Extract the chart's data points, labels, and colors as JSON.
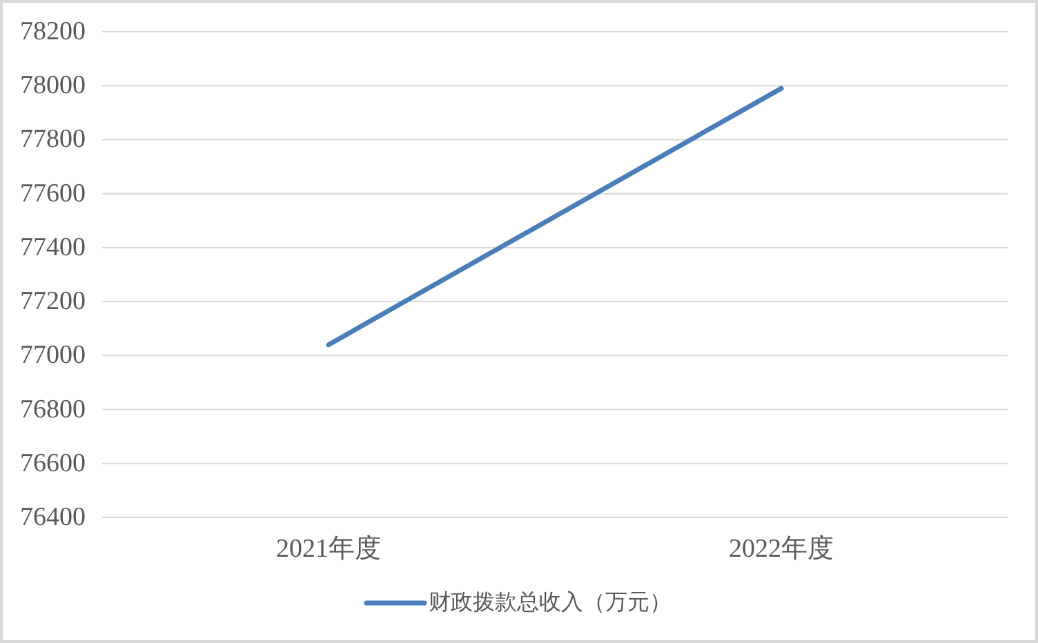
{
  "chart_data": {
    "type": "line",
    "categories": [
      "2021年度",
      "2022年度"
    ],
    "series": [
      {
        "name": "财政拨款总收入（万元）",
        "color": "#4a7ebb",
        "values": [
          77040,
          77990
        ]
      }
    ],
    "ylim": [
      76400,
      78200
    ],
    "yticks": [
      76400,
      76600,
      76800,
      77000,
      77200,
      77400,
      77600,
      77800,
      78000,
      78200
    ],
    "grid": "y",
    "legend": "bottom"
  }
}
